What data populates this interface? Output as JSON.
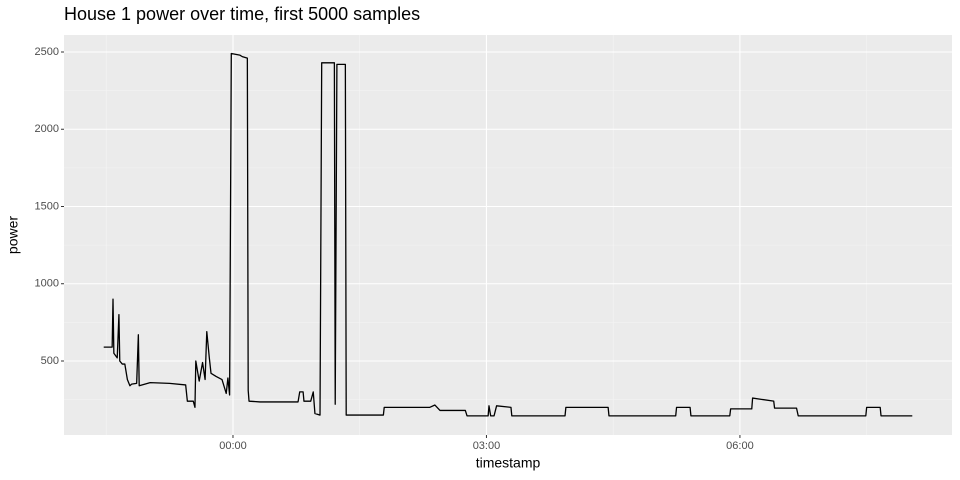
{
  "chart_data": {
    "type": "line",
    "title": "House 1 power over time, first 5000 samples",
    "xlabel": "timestamp",
    "ylabel": "power",
    "xlim": [
      -2.0,
      8.51
    ],
    "ylim": [
      21,
      2610
    ],
    "xticks": [
      {
        "value": 0,
        "label": "00:00"
      },
      {
        "value": 3,
        "label": "03:00"
      },
      {
        "value": 6,
        "label": "06:00"
      }
    ],
    "yticks": [
      500,
      1000,
      1500,
      2000,
      2500
    ],
    "grid": true,
    "x": [
      -1.53,
      -1.43,
      -1.42,
      -1.41,
      -1.37,
      -1.35,
      -1.34,
      -1.31,
      -1.28,
      -1.25,
      -1.22,
      -1.2,
      -1.14,
      -1.12,
      -1.11,
      -0.98,
      -0.75,
      -0.56,
      -0.54,
      -0.47,
      -0.45,
      -0.44,
      -0.4,
      -0.36,
      -0.33,
      -0.31,
      -0.28,
      -0.26,
      -0.2,
      -0.13,
      -0.08,
      -0.06,
      -0.04,
      -0.02,
      0.08,
      0.11,
      0.17,
      0.18,
      0.19,
      0.32,
      0.77,
      0.79,
      0.83,
      0.84,
      0.92,
      0.95,
      0.97,
      1.03,
      1.05,
      1.2,
      1.21,
      1.23,
      1.33,
      1.34,
      1.78,
      1.79,
      2.33,
      2.39,
      2.45,
      2.75,
      2.77,
      3.02,
      3.03,
      3.05,
      3.09,
      3.12,
      3.29,
      3.3,
      3.93,
      3.94,
      4.44,
      4.45,
      5.24,
      5.25,
      5.41,
      5.42,
      5.88,
      5.89,
      6.14,
      6.15,
      6.4,
      6.41,
      6.67,
      6.69,
      7.49,
      7.5,
      7.66,
      7.67,
      8.04
    ],
    "series": [
      {
        "color": "#000000",
        "values": [
          590,
          590,
          900,
          550,
          520,
          800,
          500,
          480,
          480,
          380,
          340,
          350,
          355,
          670,
          340,
          360,
          355,
          345,
          240,
          240,
          200,
          500,
          370,
          490,
          380,
          690,
          520,
          420,
          400,
          380,
          290,
          390,
          280,
          2490,
          2480,
          2470,
          2460,
          310,
          240,
          235,
          235,
          300,
          300,
          240,
          240,
          300,
          160,
          150,
          2430,
          2430,
          220,
          2420,
          2420,
          150,
          150,
          200,
          200,
          215,
          180,
          180,
          145,
          145,
          210,
          145,
          145,
          210,
          200,
          145,
          145,
          200,
          200,
          145,
          145,
          200,
          200,
          145,
          145,
          190,
          190,
          260,
          240,
          195,
          195,
          145,
          145,
          200,
          200,
          145,
          145
        ]
      }
    ]
  }
}
